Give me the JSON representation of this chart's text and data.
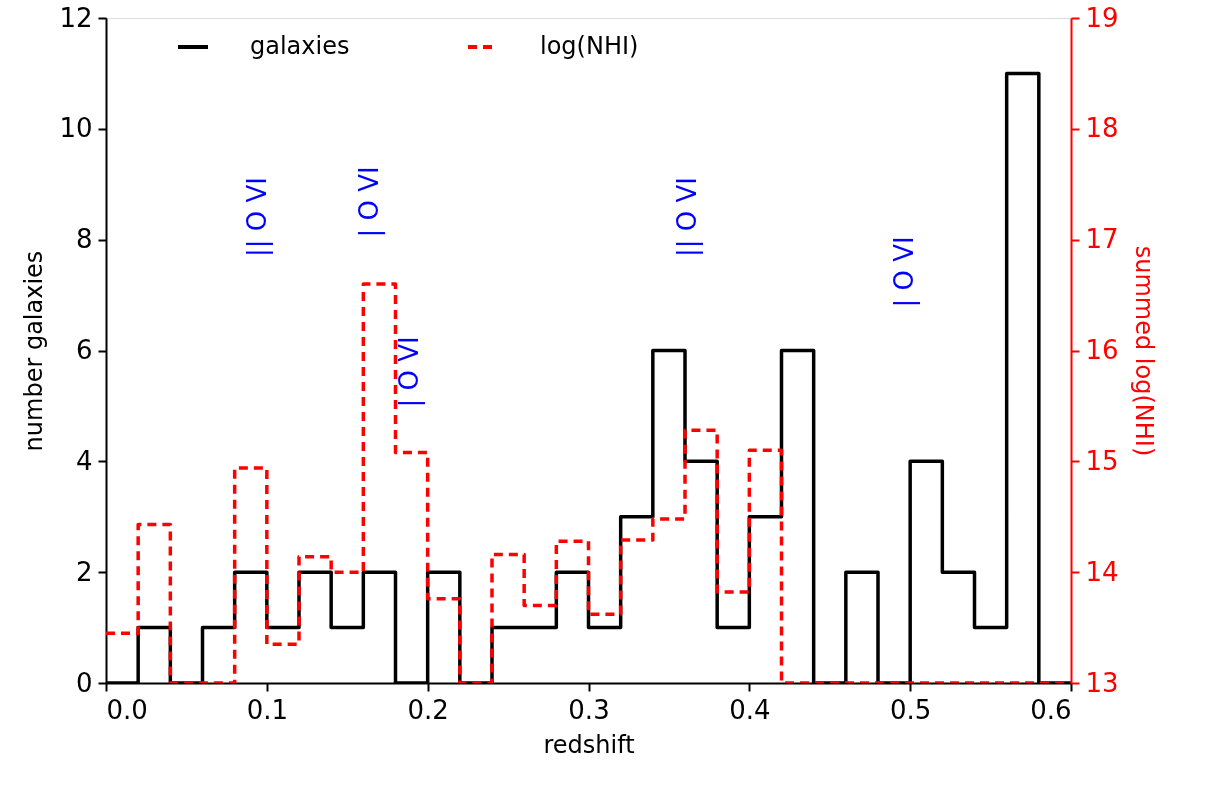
{
  "chart_data": {
    "type": "histogram",
    "xlabel": "redshift",
    "ylabel": "number galaxies",
    "y2label": "summed log(NHI)",
    "bins": [
      0.0,
      0.02,
      0.04,
      0.06,
      0.08,
      0.1,
      0.12,
      0.14,
      0.16,
      0.18,
      0.2,
      0.22,
      0.24,
      0.26,
      0.28,
      0.3,
      0.32,
      0.34,
      0.36,
      0.38,
      0.4,
      0.42,
      0.44,
      0.46,
      0.48,
      0.5,
      0.52,
      0.54,
      0.56,
      0.58,
      0.6
    ],
    "series": [
      {
        "name": "galaxies",
        "color": "#000000",
        "line_style": "solid",
        "values": [
          0,
          1,
          0,
          1,
          2,
          1,
          2,
          1,
          2,
          0,
          2,
          0,
          1,
          1,
          2,
          1,
          3,
          6,
          4,
          1,
          3,
          6,
          0,
          2,
          0,
          4,
          2,
          1,
          11,
          0
        ]
      },
      {
        "name": "log(NHI)",
        "color": "#ff0000",
        "line_style": "dashed",
        "axis": "y2",
        "values": [
          13.45,
          14.43,
          13,
          13,
          14.94,
          13.35,
          14.14,
          14.0,
          16.6,
          15.08,
          13.76,
          13,
          14.16,
          13.7,
          14.28,
          13.62,
          14.29,
          14.48,
          15.28,
          13.82,
          15.1,
          13,
          13,
          13,
          13,
          13,
          13,
          13,
          13,
          13
        ]
      }
    ],
    "xlim": [
      0.0,
      0.6
    ],
    "xticks": [
      {
        "value": 0,
        "label": "0.0"
      },
      0.1,
      0.2,
      0.3,
      0.4,
      0.5,
      0.6
    ],
    "ylim": [
      0,
      12
    ],
    "yticks": [
      0,
      2,
      4,
      6,
      8,
      10,
      12
    ],
    "y2lim": [
      13,
      19
    ],
    "y2ticks": [
      13,
      14,
      15,
      16,
      17,
      18,
      19
    ],
    "legend": "top",
    "marker": "none",
    "grid": false,
    "annotations": [
      "|| O VI",
      "| O VI",
      "| O VI",
      "|| O VI",
      "| O VI"
    ]
  }
}
